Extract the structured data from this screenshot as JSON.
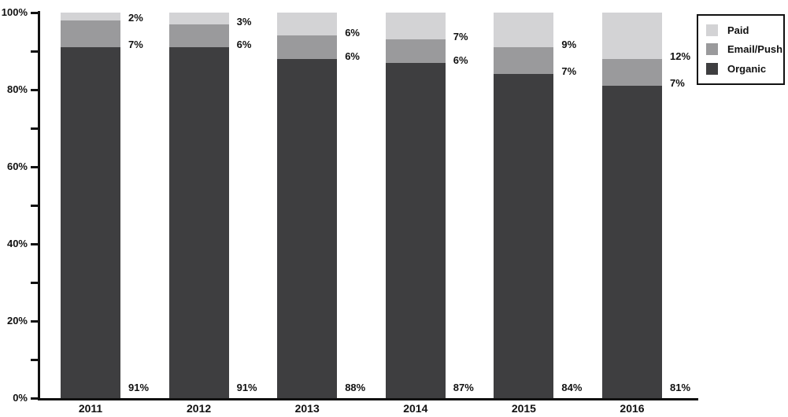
{
  "chart_data": {
    "type": "bar",
    "variant": "stacked-100-percent",
    "orientation": "vertical",
    "grid": false,
    "background": "#ffffff",
    "axis_color": "#111111",
    "label_color": "#111111",
    "value_suffix": "%",
    "categories": [
      "2011",
      "2012",
      "2013",
      "2014",
      "2015",
      "2016"
    ],
    "series": [
      {
        "name": "Organic",
        "color": "#3e3e40",
        "values": [
          91,
          91,
          88,
          87,
          84,
          81
        ]
      },
      {
        "name": "Email/Push",
        "color": "#9a9a9c",
        "values": [
          7,
          6,
          6,
          6,
          7,
          7
        ]
      },
      {
        "name": "Paid",
        "color": "#d3d3d5",
        "values": [
          2,
          3,
          6,
          7,
          9,
          12
        ]
      }
    ],
    "y_axis": {
      "min": 0,
      "max": 100,
      "minor_tick_step": 10,
      "labeled_tick_step": 20,
      "tick_labels": [
        "0%",
        "20%",
        "40%",
        "60%",
        "80%",
        "100%"
      ]
    },
    "legend": {
      "position": "top-right",
      "items": [
        "Paid",
        "Email/Push",
        "Organic"
      ]
    }
  }
}
